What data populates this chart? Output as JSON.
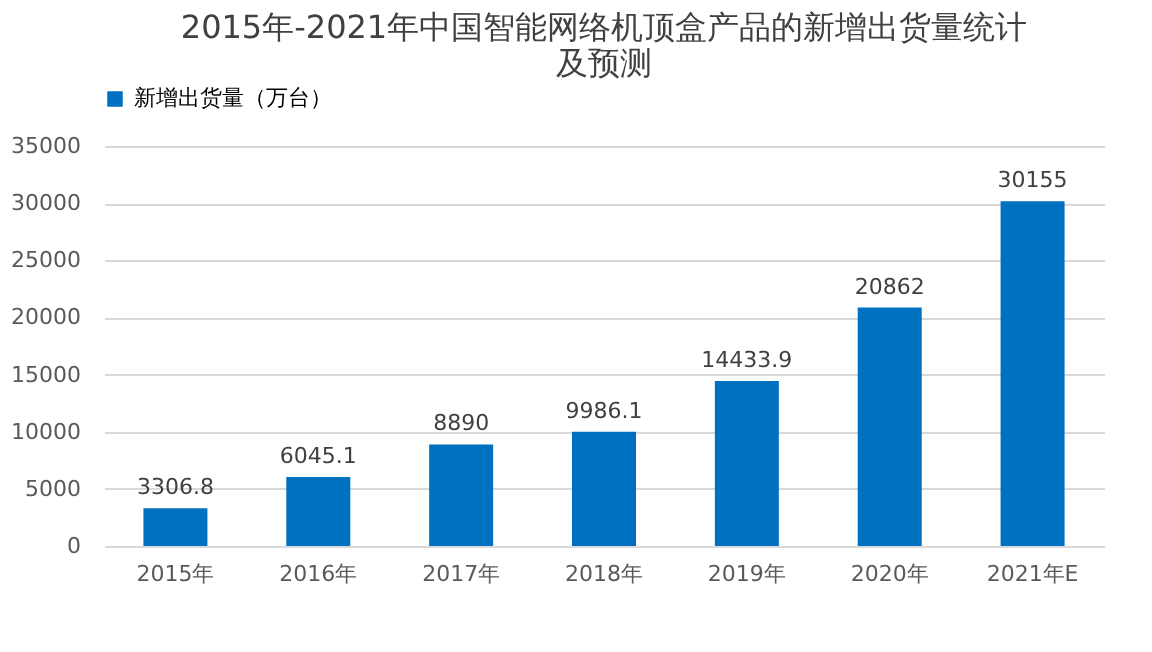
{
  "chart_data": {
    "type": "bar",
    "title": "2015年-2021年中国智能网络机顶盒产品的新增出货量统计及预测",
    "categories": [
      "2015年",
      "2016年",
      "2017年",
      "2018年",
      "2019年",
      "2020年",
      "2021年E"
    ],
    "series": [
      {
        "name": "新增出货量（万台）",
        "color": "#0070c0",
        "values": [
          3306.8,
          6045.1,
          8890,
          9986.1,
          14433.9,
          20862,
          30155
        ]
      }
    ],
    "ylim": [
      0,
      35000
    ],
    "yticks": [
      0,
      5000,
      10000,
      15000,
      20000,
      25000,
      30000,
      35000
    ],
    "grid": "y",
    "legend": "top",
    "data_labels": true
  }
}
